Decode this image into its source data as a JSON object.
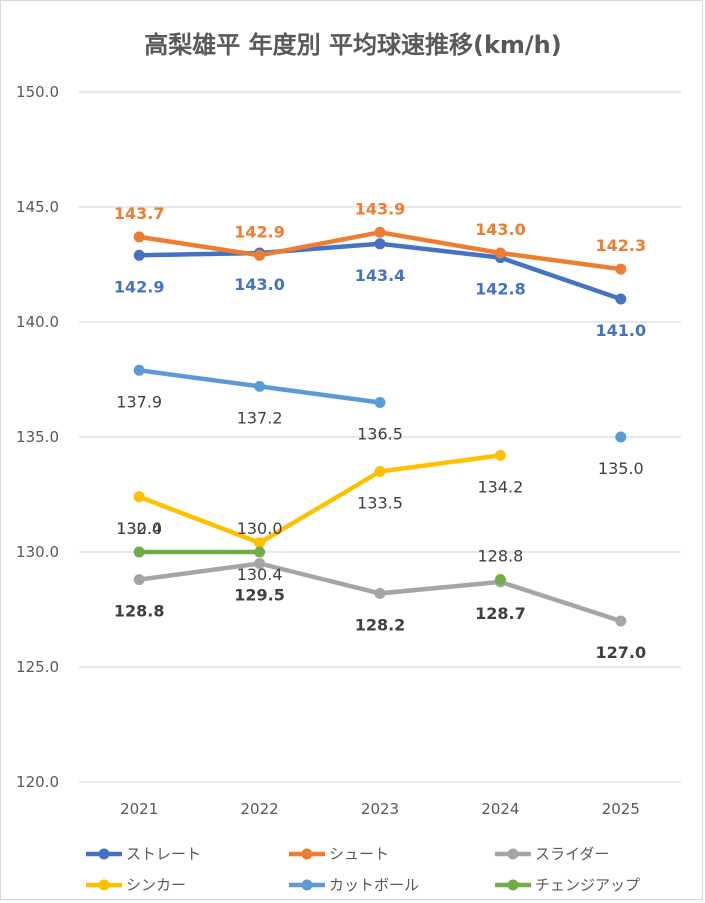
{
  "chart_data": {
    "type": "line",
    "title": "高梨雄平 年度別 平均球速推移(km/h)",
    "xlabel": "",
    "ylabel": "",
    "categories": [
      "2021",
      "2022",
      "2023",
      "2024",
      "2025"
    ],
    "ylim": [
      120.0,
      150.0
    ],
    "yticks": [
      "120.0",
      "125.0",
      "130.0",
      "135.0",
      "140.0",
      "145.0",
      "150.0"
    ],
    "grid": true,
    "legend_position": "bottom",
    "series": [
      {
        "name": "ストレート",
        "color": "#4472c4",
        "values": [
          142.9,
          143.0,
          143.4,
          142.8,
          141.0
        ],
        "labels": [
          "142.9",
          "143.0",
          "143.4",
          "142.8",
          "141.0"
        ],
        "label_pos": "below",
        "label_bold": true
      },
      {
        "name": "シュート",
        "color": "#ed7d31",
        "values": [
          143.7,
          142.9,
          143.9,
          143.0,
          142.3
        ],
        "labels": [
          "143.7",
          "142.9",
          "143.9",
          "143.0",
          "142.3"
        ],
        "label_pos": "above",
        "label_bold": true
      },
      {
        "name": "スライダー",
        "color": "#a5a5a5",
        "values": [
          128.8,
          129.5,
          128.2,
          128.7,
          127.0
        ],
        "labels": [
          "128.8",
          "129.5",
          "128.2",
          "128.7",
          "127.0"
        ],
        "label_pos": "below",
        "label_bold": true,
        "label_color": "#404040"
      },
      {
        "name": "シンカー",
        "color": "#ffc000",
        "values": [
          132.4,
          130.4,
          133.5,
          134.2,
          null
        ],
        "labels": [
          "132.4",
          "130.4",
          "133.5",
          "134.2",
          null
        ],
        "label_pos": "below",
        "label_bold": false,
        "label_color": "#404040"
      },
      {
        "name": "カットボール",
        "color": "#5b9bd5",
        "values": [
          137.9,
          137.2,
          136.5,
          null,
          135.0
        ],
        "labels": [
          "137.9",
          "137.2",
          "136.5",
          null,
          "135.0"
        ],
        "label_pos": "below",
        "label_bold": false,
        "label_color": "#404040",
        "connect_gaps": false
      },
      {
        "name": "チェンジアップ",
        "color": "#70ad47",
        "values": [
          130.0,
          130.0,
          null,
          128.8,
          null
        ],
        "labels": [
          "130.0",
          "130.0",
          null,
          "128.8",
          null
        ],
        "label_pos": "above",
        "label_bold": false,
        "label_color": "#404040",
        "connect_gaps": false
      }
    ]
  }
}
